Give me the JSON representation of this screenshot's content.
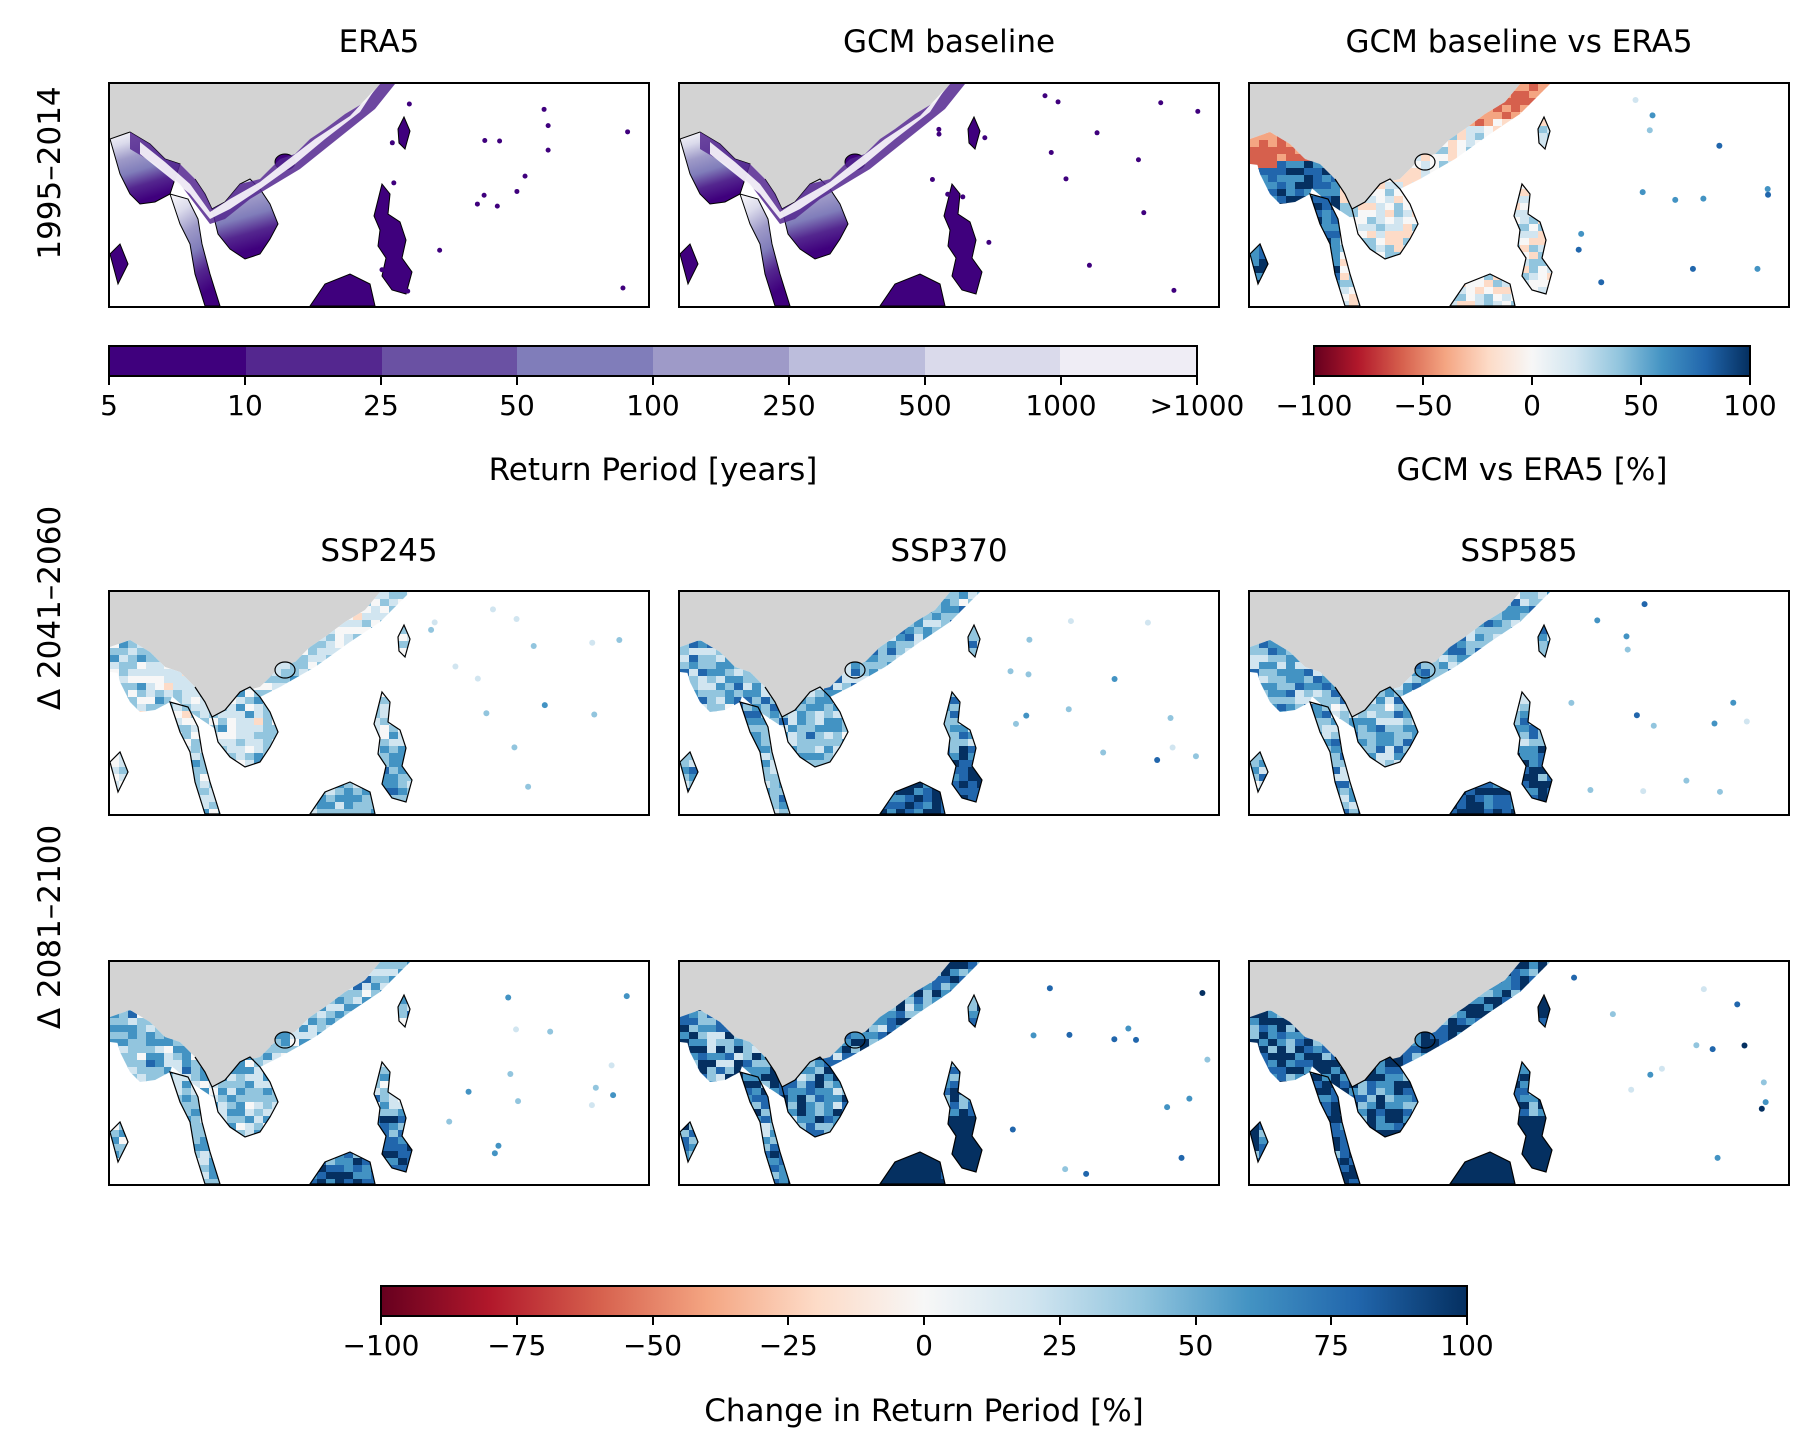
{
  "top_row": {
    "label": "1995–2014",
    "panels": [
      {
        "title": "ERA5",
        "style": "purple"
      },
      {
        "title": "GCM baseline",
        "style": "purple"
      },
      {
        "title": "GCM baseline vs ERA5",
        "style": "diverging-bias"
      }
    ]
  },
  "middle_row": {
    "label": "Δ 2041–2060",
    "panels": [
      {
        "title": "SSP245",
        "intensity": 0.45
      },
      {
        "title": "SSP370",
        "intensity": 0.65
      },
      {
        "title": "SSP585",
        "intensity": 0.7
      }
    ]
  },
  "bottom_row": {
    "label": "Δ 2081–2100",
    "panels": [
      {
        "title": "SSP245",
        "intensity": 0.6
      },
      {
        "title": "SSP370",
        "intensity": 0.9
      },
      {
        "title": "SSP585",
        "intensity": 1.0
      }
    ]
  },
  "colorbars": {
    "return_period": {
      "label": "Return Period [years]",
      "ticks": [
        "5",
        "10",
        "25",
        "50",
        "100",
        "250",
        "500",
        "1000",
        ">1000"
      ],
      "colors": [
        "#3f007d",
        "#54278f",
        "#6a51a3",
        "#807dba",
        "#9e9ac8",
        "#bcbddc",
        "#dadaeb",
        "#efedf5"
      ]
    },
    "bias": {
      "label": "GCM vs ERA5 [%]",
      "ticks": [
        "−100",
        "−50",
        "0",
        "50",
        "100"
      ]
    },
    "change": {
      "label": "Change in Return Period [%]",
      "ticks": [
        "−100",
        "−75",
        "−50",
        "−25",
        "0",
        "25",
        "50",
        "75",
        "100"
      ]
    }
  },
  "colors": {
    "no_data": "#d3d3d3",
    "diverging": [
      "#67001f",
      "#b2182b",
      "#d6604d",
      "#f4a582",
      "#fddbc7",
      "#f7f7f7",
      "#d1e5f0",
      "#92c5de",
      "#4393c3",
      "#2166ac",
      "#053061"
    ]
  }
}
